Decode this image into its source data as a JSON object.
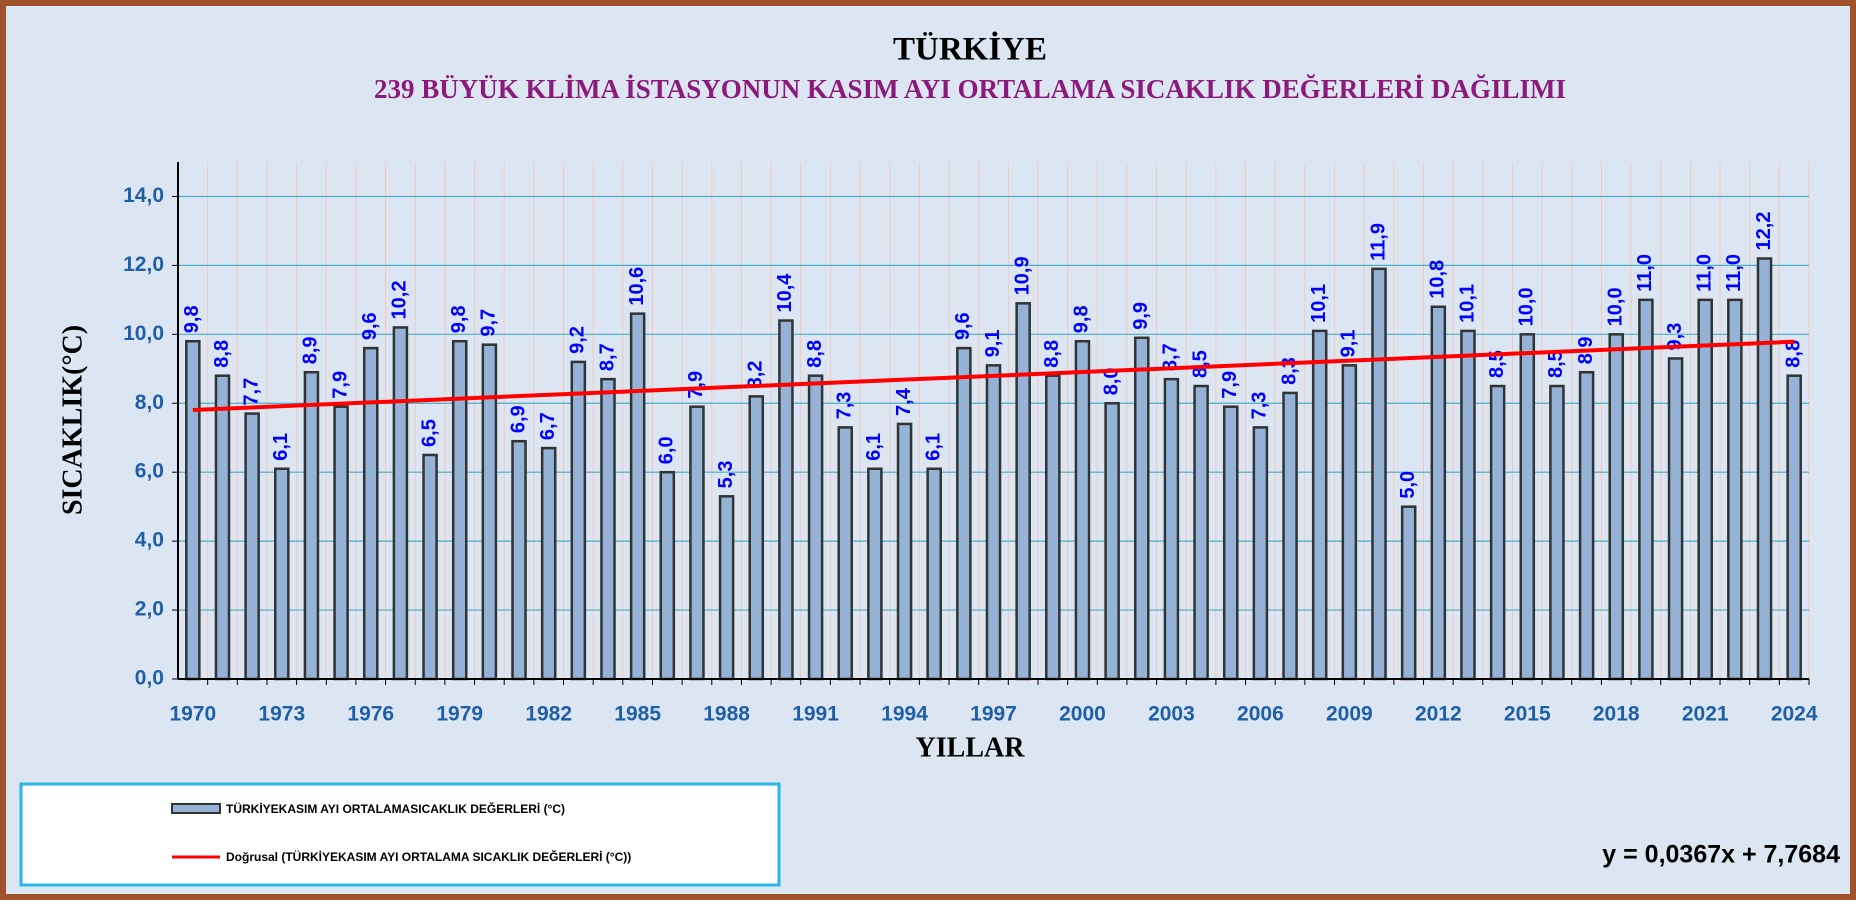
{
  "chart_data": {
    "type": "bar",
    "title": "TÜRKİYE",
    "subtitle": "239 BÜYÜK KLİMA İSTASYONUN  KASIM  AYI ORTALAMA SICAKLIK DEĞERLERİ DAĞILIMI",
    "y_label": "SICAKLIK(°C)",
    "x_label": "YILLAR",
    "categories": [
      "1970",
      null,
      null,
      "1973",
      null,
      null,
      "1976",
      null,
      null,
      "1979",
      null,
      null,
      "1982",
      null,
      null,
      "1985",
      null,
      null,
      "1988",
      null,
      null,
      "1991",
      null,
      null,
      "1994",
      null,
      null,
      "1997",
      null,
      null,
      "2000",
      null,
      null,
      "2003",
      null,
      null,
      "2006",
      null,
      null,
      "2009",
      null,
      null,
      "2012",
      null,
      null,
      "2015",
      null,
      null,
      "2018",
      null,
      null,
      "2021",
      null,
      null,
      "2024"
    ],
    "series": [
      {
        "name": "TÜRKİYEKASIM AYI ORTALAMASICAKLIK DEĞERLERİ (°C)",
        "color": "#95b3d7",
        "values": [
          9.8,
          8.8,
          7.7,
          6.1,
          8.9,
          7.9,
          9.6,
          10.2,
          6.5,
          9.8,
          9.7,
          6.9,
          6.7,
          9.2,
          8.7,
          10.6,
          6.0,
          7.9,
          5.3,
          8.2,
          10.4,
          8.8,
          7.3,
          6.1,
          7.4,
          6.1,
          9.6,
          9.1,
          10.9,
          8.8,
          9.8,
          8.0,
          9.9,
          8.7,
          8.5,
          7.9,
          7.3,
          8.3,
          10.1,
          9.1,
          11.9,
          5.0,
          10.8,
          10.1,
          8.5,
          10.0,
          8.5,
          8.9,
          10.0,
          11.0,
          9.3,
          11.0,
          11.0,
          12.2,
          8.8
        ],
        "value_labels": [
          "9,8",
          "8,8",
          "7,7",
          "6,1",
          "8,9",
          "7,9",
          "9,6",
          "10,2",
          "6,5",
          "9,8",
          "9,7",
          "6,9",
          "6,7",
          "9,2",
          "8,7",
          "10,6",
          "6,0",
          "7,9",
          "5,3",
          "8,2",
          "10,4",
          "8,8",
          "7,3",
          "6,1",
          "7,4",
          "6,1",
          "9,6",
          "9,1",
          "10,9",
          "8,8",
          "9,8",
          "8,0",
          "9,9",
          "8,7",
          "8,5",
          "7,9",
          "7,3",
          "8,3",
          "10,1",
          "9,1",
          "11,9",
          "5,0",
          "10,8",
          "10,1",
          "8,5",
          "10,0",
          "8,5",
          "8,9",
          "10,0",
          "11,0",
          "9,3",
          "11,0",
          "11,0",
          "12,2",
          "8,8"
        ]
      }
    ],
    "trend": {
      "name": "Doğrusal (TÜRKİYEKASIM AYI ORTALAMA SICAKLIK DEĞERLERİ (°C))",
      "color": "#ff0000",
      "slope": 0.0367,
      "intercept": 7.7684,
      "label": "y = 0,0367x + 7,7684"
    },
    "ylim": [
      0,
      15
    ],
    "yticks": [
      {
        "value": 0,
        "label": "0,0"
      },
      {
        "value": 2,
        "label": "2,0"
      },
      {
        "value": 4,
        "label": "4,0"
      },
      {
        "value": 6,
        "label": "6,0"
      },
      {
        "value": 8,
        "label": "8,0"
      },
      {
        "value": 10,
        "label": "10,0"
      },
      {
        "value": 12,
        "label": "12,0"
      },
      {
        "value": 14,
        "label": "14,0"
      }
    ],
    "grid": true
  }
}
